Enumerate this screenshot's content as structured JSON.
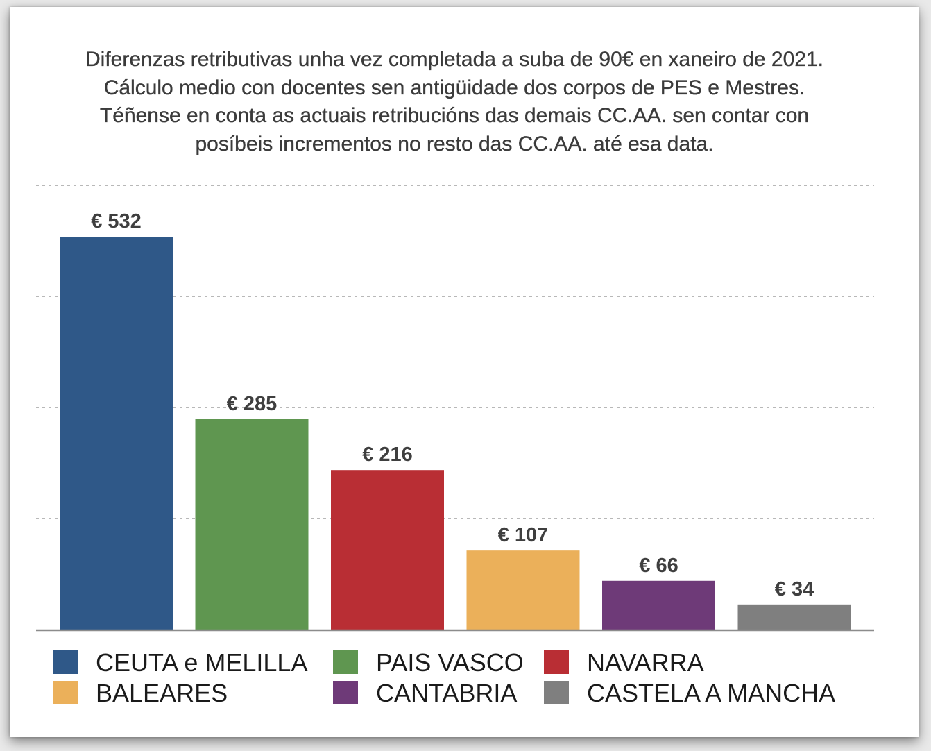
{
  "title_lines": [
    "Diferenzas retributivas unha vez completada a suba de 90€ en xaneiro de 2021.",
    "Cálculo medio con docentes sen antigüidade dos corpos de PES e Mestres.",
    "Téñense en conta as actuais retribucións das demais CC.AA. sen contar con",
    "posíbeis incrementos no resto das CC.AA. até esa data."
  ],
  "chart_data": {
    "type": "bar",
    "categories": [
      "CEUTA e MELILLA",
      "PAIS VASCO",
      "NAVARRA",
      "BALEARES",
      "CANTABRIA",
      "CASTELA A MANCHA"
    ],
    "values": [
      532,
      285,
      216,
      107,
      66,
      34
    ],
    "value_labels": [
      "€ 532",
      "€ 285",
      "€ 216",
      "€ 107",
      "€ 66",
      "€ 34"
    ],
    "colors": [
      "#2f5888",
      "#5f9650",
      "#b92e34",
      "#ebb05a",
      "#6e3a78",
      "#7f7f7f"
    ],
    "ylim": [
      0,
      600
    ],
    "gridlines": [
      150,
      300,
      450,
      600
    ],
    "grid": true,
    "legend_position": "bottom",
    "title": "",
    "xlabel": "",
    "ylabel": ""
  }
}
